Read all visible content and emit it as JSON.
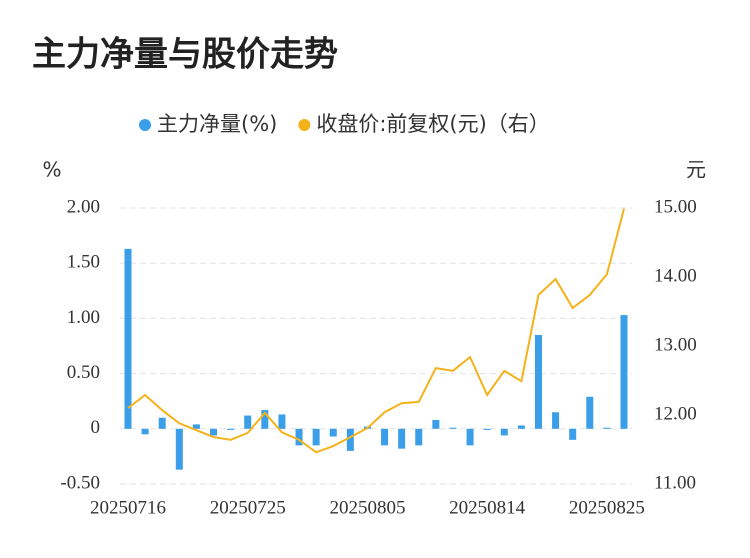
{
  "chart_data": {
    "type": "bar-line",
    "title": "主力净量与股价走势",
    "y_unit": "%",
    "y2_unit": "元",
    "categories": [
      "20250716",
      null,
      null,
      null,
      null,
      null,
      null,
      "20250725",
      null,
      null,
      null,
      null,
      null,
      null,
      "20250805",
      null,
      null,
      null,
      null,
      null,
      null,
      "20250814",
      null,
      null,
      null,
      null,
      null,
      null,
      "20250825",
      null
    ],
    "series": [
      {
        "name": "主力净量(%)",
        "type": "bar",
        "color": "#3a9fe8",
        "values": [
          1.63,
          -0.05,
          0.1,
          -0.37,
          0.04,
          -0.06,
          -0.01,
          0.12,
          0.17,
          0.13,
          -0.15,
          -0.15,
          -0.07,
          -0.2,
          0.02,
          -0.15,
          -0.18,
          -0.15,
          0.08,
          0.01,
          -0.15,
          -0.01,
          -0.06,
          0.03,
          0.85,
          0.15,
          -0.1,
          0.29,
          0.01,
          1.03
        ]
      },
      {
        "name": "收盘价:前复权(元)（右）",
        "type": "line",
        "axis": "y2",
        "color": "#f5b21a",
        "values": [
          12.1,
          12.29,
          12.07,
          11.88,
          11.78,
          11.68,
          11.64,
          11.74,
          12.03,
          11.75,
          11.64,
          11.46,
          11.55,
          11.68,
          11.81,
          12.04,
          12.17,
          12.19,
          12.68,
          12.64,
          12.84,
          12.29,
          12.64,
          12.49,
          13.74,
          13.97,
          13.55,
          13.74,
          14.04,
          14.99
        ]
      }
    ],
    "ylim": [
      -0.5,
      2.0
    ],
    "yticks": [
      {
        "value": -0.5,
        "label": "-0.50"
      },
      0,
      {
        "value": 0.5,
        "label": "0.50"
      },
      {
        "value": 1.0,
        "label": "1.00"
      },
      {
        "value": 1.5,
        "label": "1.50"
      },
      {
        "value": 2.0,
        "label": "2.00"
      }
    ],
    "y2lim": [
      11.0,
      15.0
    ],
    "y2ticks": [
      {
        "value": 11,
        "label": "11.00"
      },
      {
        "value": 12,
        "label": "12.00"
      },
      {
        "value": 13,
        "label": "13.00"
      },
      {
        "value": 14,
        "label": "14.00"
      },
      {
        "value": 15,
        "label": "15.00"
      }
    ],
    "grid": true
  }
}
